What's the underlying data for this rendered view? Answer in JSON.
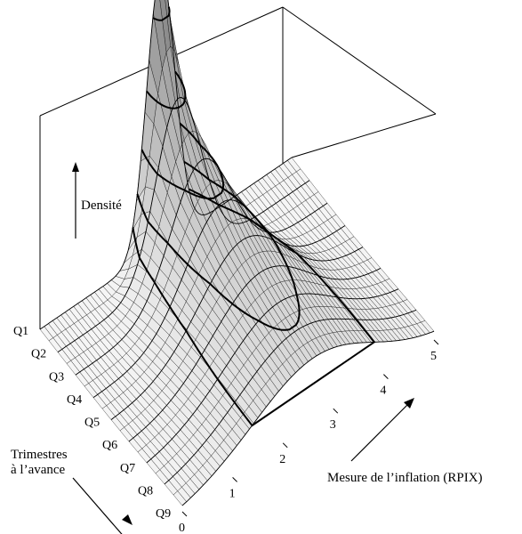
{
  "chart_data": {
    "type": "surface",
    "x_axis": {
      "label": "Mesure de l’inflation (RPIX)",
      "ticks": [
        "0",
        "1",
        "2",
        "3",
        "4",
        "5"
      ],
      "range": [
        0,
        5
      ]
    },
    "y_axis": {
      "label_line1": "Trimestres",
      "label_line2": "à l’avance",
      "ticks": [
        "Q1",
        "Q2",
        "Q3",
        "Q4",
        "Q5",
        "Q6",
        "Q7",
        "Q8",
        "Q9"
      ]
    },
    "z_axis": {
      "label": "Densité"
    },
    "surface": {
      "shape": "fan chart density: narrow tall peak at Q1, spreading and flattening toward Q9",
      "mode_by_quarter": [
        2.4,
        2.4,
        2.5,
        2.55,
        2.6,
        2.6,
        2.6,
        2.6,
        2.6
      ],
      "spread_by_quarter": [
        0.28,
        0.45,
        0.6,
        0.72,
        0.85,
        0.95,
        1.05,
        1.13,
        1.2
      ]
    }
  }
}
